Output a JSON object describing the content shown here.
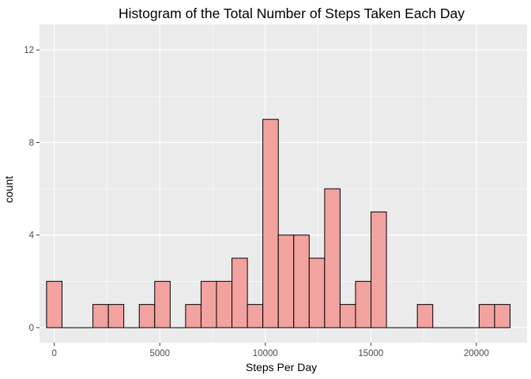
{
  "chart_data": {
    "type": "bar",
    "title": "Histogram of the Total Number of Steps Taken Each Day",
    "xlabel": "Steps Per Day",
    "ylabel": "count",
    "x_ticks": [
      0,
      5000,
      10000,
      15000,
      20000
    ],
    "y_ticks": [
      0,
      4,
      8,
      12
    ],
    "xlim": [
      -700,
      22400
    ],
    "ylim": [
      -0.65,
      13.1
    ],
    "grid": true,
    "legend": "none",
    "bins": [
      {
        "x0": -366,
        "x1": 366,
        "count": 2
      },
      {
        "x0": 366,
        "x1": 1098,
        "count": 0
      },
      {
        "x0": 1098,
        "x1": 1830,
        "count": 0
      },
      {
        "x0": 1830,
        "x1": 2562,
        "count": 1
      },
      {
        "x0": 2562,
        "x1": 3294,
        "count": 1
      },
      {
        "x0": 3294,
        "x1": 4026,
        "count": 0
      },
      {
        "x0": 4026,
        "x1": 4758,
        "count": 1
      },
      {
        "x0": 4758,
        "x1": 5490,
        "count": 2
      },
      {
        "x0": 5490,
        "x1": 6222,
        "count": 0
      },
      {
        "x0": 6222,
        "x1": 6954,
        "count": 1
      },
      {
        "x0": 6954,
        "x1": 7686,
        "count": 2
      },
      {
        "x0": 7686,
        "x1": 8418,
        "count": 2
      },
      {
        "x0": 8418,
        "x1": 9150,
        "count": 3
      },
      {
        "x0": 9150,
        "x1": 9882,
        "count": 1
      },
      {
        "x0": 9882,
        "x1": 10614,
        "count": 9
      },
      {
        "x0": 10614,
        "x1": 11346,
        "count": 4
      },
      {
        "x0": 11346,
        "x1": 12078,
        "count": 4
      },
      {
        "x0": 12078,
        "x1": 12810,
        "count": 3
      },
      {
        "x0": 12810,
        "x1": 13542,
        "count": 6
      },
      {
        "x0": 13542,
        "x1": 14274,
        "count": 1
      },
      {
        "x0": 14274,
        "x1": 15006,
        "count": 2
      },
      {
        "x0": 15006,
        "x1": 15738,
        "count": 5
      },
      {
        "x0": 15738,
        "x1": 16470,
        "count": 0
      },
      {
        "x0": 16470,
        "x1": 17202,
        "count": 0
      },
      {
        "x0": 17202,
        "x1": 17934,
        "count": 1
      },
      {
        "x0": 17934,
        "x1": 18666,
        "count": 0
      },
      {
        "x0": 18666,
        "x1": 19398,
        "count": 0
      },
      {
        "x0": 19398,
        "x1": 20130,
        "count": 0
      },
      {
        "x0": 20130,
        "x1": 20862,
        "count": 1
      },
      {
        "x0": 20862,
        "x1": 21594,
        "count": 1
      }
    ],
    "colors": {
      "bar_fill": "#f2a3a0",
      "bar_stroke": "#000000",
      "panel_background": "#ebebeb",
      "grid": "#ffffff"
    }
  }
}
